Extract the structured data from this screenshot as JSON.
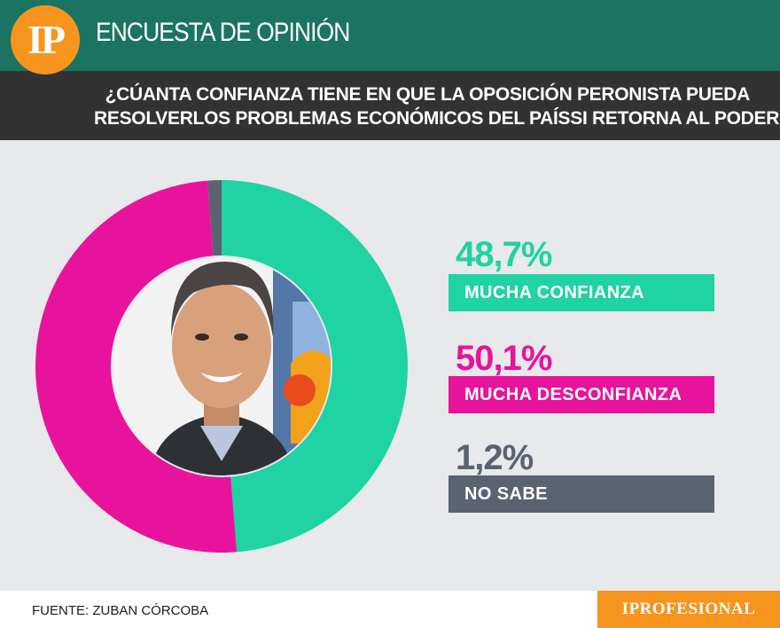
{
  "header": {
    "logo_text": "IP",
    "title": "ENCUESTA DE OPINIÓN"
  },
  "question": {
    "line1": "¿CÚANTA CONFIANZA TIENE EN QUE LA OPOSICIÓN PERONISTA PUEDA",
    "line2": "RESOLVERLOS PROBLEMAS ECONÓMICOS DEL PAÍSSI RETORNA AL PODER?"
  },
  "chart_data": {
    "type": "pie",
    "title": "",
    "categories": [
      "MUCHA CONFIANZA",
      "MUCHA DESCONFIANZA",
      "NO SABE"
    ],
    "values": [
      48.7,
      50.1,
      1.2
    ],
    "display_values": [
      "48,7%",
      "50,1%",
      "1,2%"
    ],
    "colors": [
      "#1fd3a3",
      "#e8139c",
      "#5b6270"
    ],
    "start": "top",
    "direction": "clockwise",
    "legend": "right",
    "style": "donut"
  },
  "photo": {
    "icon": "person-photo",
    "bg_color": "#5576a8"
  },
  "footer": {
    "source": "FUENTE: ZUBAN CÓRCOBA",
    "brand": "IPROFESIONAL"
  }
}
